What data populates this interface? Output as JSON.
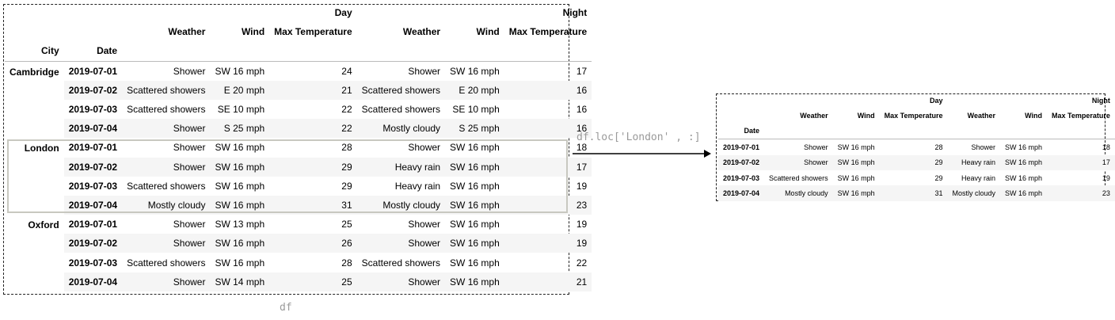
{
  "left_table": {
    "caption": "df",
    "groups": [
      "Day",
      "Night"
    ],
    "columns": [
      "Weather",
      "Wind",
      "Max Temperature",
      "Weather",
      "Wind",
      "Max Temperature"
    ],
    "index_names": [
      "City",
      "Date"
    ],
    "rows": [
      {
        "city": "Cambridge",
        "date": "2019-07-01",
        "cells": [
          "Shower",
          "SW 16 mph",
          "24",
          "Shower",
          "SW 16 mph",
          "17"
        ]
      },
      {
        "city": "",
        "date": "2019-07-02",
        "cells": [
          "Scattered showers",
          "E 20 mph",
          "21",
          "Scattered showers",
          "E 20 mph",
          "16"
        ]
      },
      {
        "city": "",
        "date": "2019-07-03",
        "cells": [
          "Scattered showers",
          "SE 10 mph",
          "22",
          "Scattered showers",
          "SE 10 mph",
          "16"
        ]
      },
      {
        "city": "",
        "date": "2019-07-04",
        "cells": [
          "Shower",
          "S 25 mph",
          "22",
          "Mostly cloudy",
          "S 25 mph",
          "16"
        ]
      },
      {
        "city": "London",
        "date": "2019-07-01",
        "cells": [
          "Shower",
          "SW 16 mph",
          "28",
          "Shower",
          "SW 16 mph",
          "18"
        ]
      },
      {
        "city": "",
        "date": "2019-07-02",
        "cells": [
          "Shower",
          "SW 16 mph",
          "29",
          "Heavy rain",
          "SW 16 mph",
          "17"
        ]
      },
      {
        "city": "",
        "date": "2019-07-03",
        "cells": [
          "Scattered showers",
          "SW 16 mph",
          "29",
          "Heavy rain",
          "SW 16 mph",
          "19"
        ]
      },
      {
        "city": "",
        "date": "2019-07-04",
        "cells": [
          "Mostly cloudy",
          "SW 16 mph",
          "31",
          "Mostly cloudy",
          "SW 16 mph",
          "23"
        ]
      },
      {
        "city": "Oxford",
        "date": "2019-07-01",
        "cells": [
          "Shower",
          "SW 13 mph",
          "25",
          "Shower",
          "SW 16 mph",
          "19"
        ]
      },
      {
        "city": "",
        "date": "2019-07-02",
        "cells": [
          "Shower",
          "SW 16 mph",
          "26",
          "Shower",
          "SW 16 mph",
          "19"
        ]
      },
      {
        "city": "",
        "date": "2019-07-03",
        "cells": [
          "Scattered showers",
          "SW 16 mph",
          "28",
          "Scattered showers",
          "SW 16 mph",
          "22"
        ]
      },
      {
        "city": "",
        "date": "2019-07-04",
        "cells": [
          "Shower",
          "SW 14 mph",
          "25",
          "Shower",
          "SW 16 mph",
          "21"
        ]
      }
    ]
  },
  "operation_label": "df.loc['London' , :]",
  "right_table": {
    "groups": [
      "Day",
      "Night"
    ],
    "columns": [
      "Weather",
      "Wind",
      "Max Temperature",
      "Weather",
      "Wind",
      "Max Temperature"
    ],
    "index_name": "Date",
    "rows": [
      {
        "date": "2019-07-01",
        "cells": [
          "Shower",
          "SW 16 mph",
          "28",
          "Shower",
          "SW 16 mph",
          "18"
        ]
      },
      {
        "date": "2019-07-02",
        "cells": [
          "Shower",
          "SW 16 mph",
          "29",
          "Heavy rain",
          "SW 16 mph",
          "17"
        ]
      },
      {
        "date": "2019-07-03",
        "cells": [
          "Scattered showers",
          "SW 16 mph",
          "29",
          "Heavy rain",
          "SW 16 mph",
          "19"
        ]
      },
      {
        "date": "2019-07-04",
        "cells": [
          "Mostly cloudy",
          "SW 16 mph",
          "31",
          "Mostly cloudy",
          "SW 16 mph",
          "23"
        ]
      }
    ]
  },
  "colors": {
    "frame": "#222222",
    "highlight": "#c8c8c0",
    "stripe": "#f5f5f5",
    "caption": "#9a9a9a"
  }
}
